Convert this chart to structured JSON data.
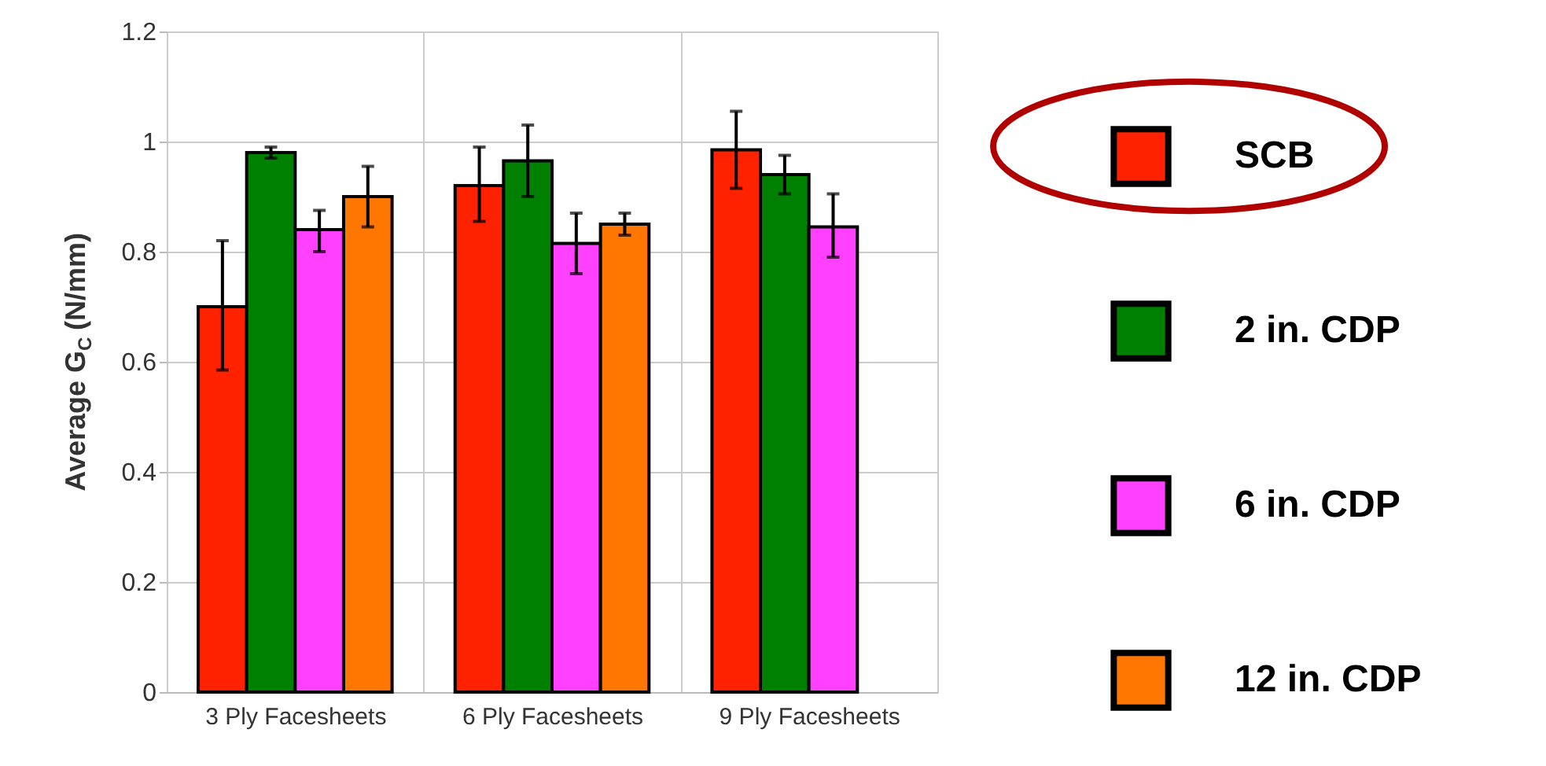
{
  "chart_data": {
    "type": "bar",
    "ylabel": "Average G$_{C}$ (N/mm)",
    "categories": [
      "3 Ply Facesheets",
      "6 Ply Facesheets",
      "9 Ply Facesheets"
    ],
    "series": [
      {
        "name": "SCB",
        "color": "#ff2200",
        "values": [
          0.7,
          0.92,
          0.985
        ],
        "errors": [
          [
            0.585,
            0.82
          ],
          [
            0.855,
            0.99
          ],
          [
            0.915,
            1.055
          ]
        ]
      },
      {
        "name": "2 in. CDP",
        "color": "#008000",
        "values": [
          0.98,
          0.965,
          0.94
        ],
        "errors": [
          [
            0.97,
            0.99
          ],
          [
            0.9,
            1.03
          ],
          [
            0.905,
            0.975
          ]
        ]
      },
      {
        "name": "6 in. CDP",
        "color": "#ff40ff",
        "values": [
          0.84,
          0.815,
          0.845
        ],
        "errors": [
          [
            0.8,
            0.875
          ],
          [
            0.76,
            0.87
          ],
          [
            0.79,
            0.905
          ]
        ]
      },
      {
        "name": "12 in. CDP",
        "color": "#ff7700",
        "values": [
          0.9,
          0.85,
          null
        ],
        "errors": [
          [
            0.845,
            0.955
          ],
          [
            0.83,
            0.87
          ],
          null
        ]
      }
    ],
    "ylim": [
      0,
      1.2
    ],
    "yticks": [
      0,
      0.2,
      0.4,
      0.6,
      0.8,
      1,
      1.2
    ],
    "grid": true,
    "legend": "right"
  }
}
